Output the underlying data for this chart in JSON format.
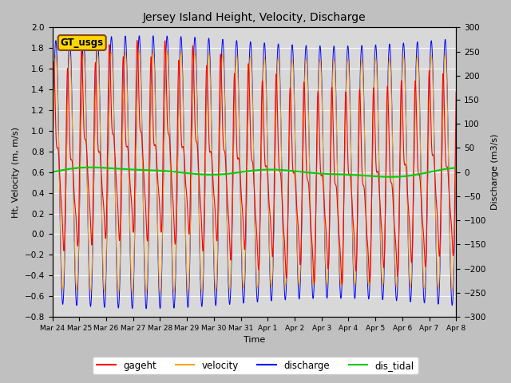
{
  "title": "Jersey Island Height, Velocity, Discharge",
  "xlabel": "Time",
  "ylabel_left": "Ht, Velocity (m, m/s)",
  "ylabel_right": "Discharge (m3/s)",
  "ylim_left": [
    -0.8,
    2.0
  ],
  "ylim_right": [
    -300,
    300
  ],
  "xtick_labels": [
    "Mar 24",
    "Mar 25",
    "Mar 26",
    "Mar 27",
    "Mar 28",
    "Mar 29",
    "Mar 30",
    "Mar 31",
    "Apr 1",
    "Apr 2",
    "Apr 3",
    "Apr 4",
    "Apr 5",
    "Apr 6",
    "Apr 7",
    "Apr 8"
  ],
  "ytick_left": [
    -0.8,
    -0.6,
    -0.4,
    -0.2,
    0.0,
    0.2,
    0.4,
    0.6,
    0.8,
    1.0,
    1.2,
    1.4,
    1.6,
    1.8,
    2.0
  ],
  "ytick_right": [
    -300,
    -250,
    -200,
    -150,
    -100,
    -50,
    0,
    50,
    100,
    150,
    200,
    250,
    300
  ],
  "legend_labels": [
    "gageht",
    "velocity",
    "discharge",
    "dis_tidal"
  ],
  "legend_colors": [
    "#FF0000",
    "#FFA500",
    "#0000FF",
    "#00CC00"
  ],
  "watermark_text": "GT_usgs",
  "watermark_bg": "#FFD700",
  "watermark_border": "#8B4513",
  "fig_facecolor": "#C0C0C0",
  "plot_facecolor": "#D8D8D8",
  "gageht_color": "#FF0000",
  "velocity_color": "#FFA500",
  "discharge_color": "#0000FF",
  "dis_tidal_color": "#00CC00",
  "num_points": 5000,
  "period_hours": 12.4,
  "days": 15
}
